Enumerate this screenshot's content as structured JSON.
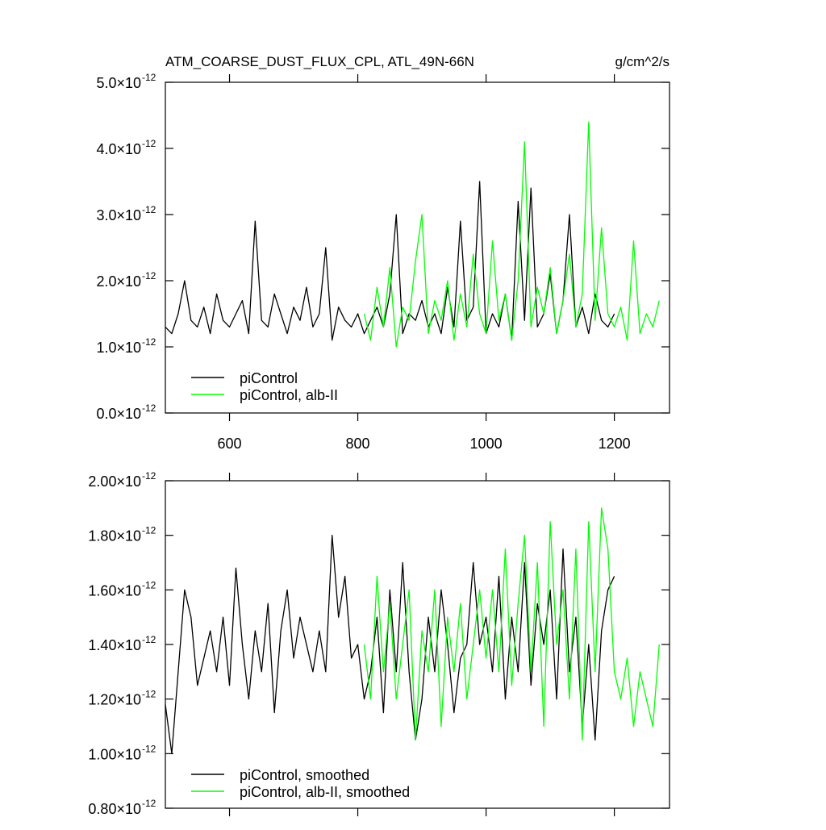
{
  "chart_data": [
    {
      "type": "line",
      "title": "ATM_COARSE_DUST_FLUX_CPL, ATL_49N-66N",
      "units": "g/cm^2/s",
      "xlim": [
        500,
        1286
      ],
      "xticks": [
        600,
        800,
        1000,
        1200
      ],
      "ylim": [
        0,
        5e-12
      ],
      "yticks": [
        {
          "value": 0,
          "label": "0.0×10",
          "exponent": "-12"
        },
        {
          "value": 1e-12,
          "label": "1.0×10",
          "exponent": "-12"
        },
        {
          "value": 2e-12,
          "label": "2.0×10",
          "exponent": "-12"
        },
        {
          "value": 3e-12,
          "label": "3.0×10",
          "exponent": "-12"
        },
        {
          "value": 4e-12,
          "label": "4.0×10",
          "exponent": "-12"
        },
        {
          "value": 5e-12,
          "label": "5.0×10",
          "exponent": "-12"
        }
      ],
      "series": [
        {
          "name": "piControl",
          "color": "#000000",
          "x": [
            500,
            510,
            520,
            530,
            540,
            550,
            560,
            570,
            580,
            590,
            600,
            610,
            620,
            630,
            640,
            650,
            660,
            670,
            680,
            690,
            700,
            710,
            720,
            730,
            740,
            750,
            760,
            770,
            780,
            790,
            800,
            810,
            820,
            830,
            840,
            850,
            860,
            870,
            880,
            890,
            900,
            910,
            920,
            930,
            940,
            950,
            960,
            970,
            980,
            990,
            1000,
            1010,
            1020,
            1030,
            1040,
            1050,
            1060,
            1070,
            1080,
            1090,
            1100,
            1110,
            1120,
            1130,
            1140,
            1150,
            1160,
            1170,
            1180,
            1190,
            1200
          ],
          "values": [
            1.3e-12,
            1.2e-12,
            1.5e-12,
            2e-12,
            1.4e-12,
            1.3e-12,
            1.6e-12,
            1.2e-12,
            1.8e-12,
            1.4e-12,
            1.3e-12,
            1.5e-12,
            1.7e-12,
            1.2e-12,
            2.9e-12,
            1.4e-12,
            1.3e-12,
            1.8e-12,
            1.5e-12,
            1.2e-12,
            1.6e-12,
            1.4e-12,
            1.9e-12,
            1.3e-12,
            1.5e-12,
            2.5e-12,
            1.1e-12,
            1.6e-12,
            1.4e-12,
            1.3e-12,
            1.5e-12,
            1.2e-12,
            1.4e-12,
            1.6e-12,
            1.3e-12,
            1.8e-12,
            3e-12,
            1.2e-12,
            1.5e-12,
            1.4e-12,
            1.7e-12,
            1.3e-12,
            1.5e-12,
            1.2e-12,
            1.9e-12,
            1.3e-12,
            2.9e-12,
            1.4e-12,
            1.6e-12,
            3.5e-12,
            1.2e-12,
            1.5e-12,
            1.3e-12,
            1.8e-12,
            1.1e-12,
            3.2e-12,
            1.4e-12,
            3.4e-12,
            1.3e-12,
            1.5e-12,
            2.1e-12,
            1.2e-12,
            1.7e-12,
            3e-12,
            1.3e-12,
            1.6e-12,
            1.2e-12,
            1.8e-12,
            1.4e-12,
            1.3e-12,
            1.5e-12
          ]
        },
        {
          "name": "piControl, alb-II",
          "color": "#00ff00",
          "x": [
            810,
            820,
            830,
            840,
            850,
            860,
            870,
            880,
            890,
            900,
            910,
            920,
            930,
            940,
            950,
            960,
            970,
            980,
            990,
            1000,
            1010,
            1020,
            1030,
            1040,
            1050,
            1060,
            1070,
            1080,
            1090,
            1100,
            1110,
            1120,
            1130,
            1140,
            1150,
            1160,
            1170,
            1180,
            1190,
            1200,
            1210,
            1220,
            1230,
            1240,
            1250,
            1260,
            1270
          ],
          "values": [
            1.5e-12,
            1.1e-12,
            1.9e-12,
            1.3e-12,
            2.2e-12,
            1e-12,
            1.6e-12,
            1.4e-12,
            2.3e-12,
            3e-12,
            1.2e-12,
            1.7e-12,
            1.4e-12,
            2e-12,
            1.1e-12,
            1.8e-12,
            1.3e-12,
            2.4e-12,
            1.5e-12,
            1.2e-12,
            2.6e-12,
            1.4e-12,
            1.8e-12,
            1.1e-12,
            2e-12,
            4.1e-12,
            1.3e-12,
            1.9e-12,
            1.5e-12,
            2.2e-12,
            1.2e-12,
            1.7e-12,
            2.4e-12,
            1.3e-12,
            1.8e-12,
            4.4e-12,
            1.4e-12,
            2.8e-12,
            1.5e-12,
            1.3e-12,
            1.6e-12,
            1.1e-12,
            2.6e-12,
            1.2e-12,
            1.5e-12,
            1.3e-12,
            1.7e-12
          ]
        }
      ]
    },
    {
      "type": "line",
      "xlim": [
        500,
        1286
      ],
      "xticks": [
        600,
        800,
        1000,
        1200
      ],
      "ylim": [
        8e-13,
        2e-12
      ],
      "yticks": [
        {
          "value": 8e-13,
          "label": "0.80×10",
          "exponent": "-12"
        },
        {
          "value": 1e-12,
          "label": "1.00×10",
          "exponent": "-12"
        },
        {
          "value": 1.2e-12,
          "label": "1.20×10",
          "exponent": "-12"
        },
        {
          "value": 1.4e-12,
          "label": "1.40×10",
          "exponent": "-12"
        },
        {
          "value": 1.6e-12,
          "label": "1.60×10",
          "exponent": "-12"
        },
        {
          "value": 1.8e-12,
          "label": "1.80×10",
          "exponent": "-12"
        },
        {
          "value": 2e-12,
          "label": "2.00×10",
          "exponent": "-12"
        }
      ],
      "series": [
        {
          "name": "piControl, smoothed",
          "color": "#000000",
          "x": [
            500,
            510,
            520,
            530,
            540,
            550,
            560,
            570,
            580,
            590,
            600,
            610,
            620,
            630,
            640,
            650,
            660,
            670,
            680,
            690,
            700,
            710,
            720,
            730,
            740,
            750,
            760,
            770,
            780,
            790,
            800,
            810,
            820,
            830,
            840,
            850,
            860,
            870,
            880,
            890,
            900,
            910,
            920,
            930,
            940,
            950,
            960,
            970,
            980,
            990,
            1000,
            1010,
            1020,
            1030,
            1040,
            1050,
            1060,
            1070,
            1080,
            1090,
            1100,
            1110,
            1120,
            1130,
            1140,
            1150,
            1160,
            1170,
            1180,
            1190,
            1200
          ],
          "values": [
            1.18e-12,
            1e-12,
            1.3e-12,
            1.6e-12,
            1.5e-12,
            1.25e-12,
            1.35e-12,
            1.45e-12,
            1.3e-12,
            1.5e-12,
            1.25e-12,
            1.68e-12,
            1.4e-12,
            1.2e-12,
            1.45e-12,
            1.3e-12,
            1.55e-12,
            1.15e-12,
            1.45e-12,
            1.6e-12,
            1.35e-12,
            1.5e-12,
            1.4e-12,
            1.3e-12,
            1.45e-12,
            1.3e-12,
            1.8e-12,
            1.5e-12,
            1.65e-12,
            1.35e-12,
            1.4e-12,
            1.2e-12,
            1.3e-12,
            1.5e-12,
            1.15e-12,
            1.6e-12,
            1.3e-12,
            1.7e-12,
            1.3e-12,
            1.05e-12,
            1.2e-12,
            1.5e-12,
            1.3e-12,
            1.6e-12,
            1.4e-12,
            1.15e-12,
            1.35e-12,
            1.4e-12,
            1.7e-12,
            1.4e-12,
            1.5e-12,
            1.3e-12,
            1.65e-12,
            1.2e-12,
            1.5e-12,
            1.3e-12,
            1.7e-12,
            1.25e-12,
            1.55e-12,
            1.4e-12,
            1.6e-12,
            1.2e-12,
            1.75e-12,
            1.3e-12,
            1.5e-12,
            1.1e-12,
            1.4e-12,
            1.05e-12,
            1.45e-12,
            1.6e-12,
            1.65e-12
          ]
        },
        {
          "name": "piControl, alb-II, smoothed",
          "color": "#00ff00",
          "x": [
            810,
            820,
            830,
            840,
            850,
            860,
            870,
            880,
            890,
            900,
            910,
            920,
            930,
            940,
            950,
            960,
            970,
            980,
            990,
            1000,
            1010,
            1020,
            1030,
            1040,
            1050,
            1060,
            1070,
            1080,
            1090,
            1100,
            1110,
            1120,
            1130,
            1140,
            1150,
            1160,
            1170,
            1180,
            1190,
            1200,
            1210,
            1220,
            1230,
            1240,
            1250,
            1260,
            1270
          ],
          "values": [
            1.4e-12,
            1.2e-12,
            1.65e-12,
            1.3e-12,
            1.55e-12,
            1.2e-12,
            1.4e-12,
            1.6e-12,
            1.05e-12,
            1.45e-12,
            1.3e-12,
            1.6e-12,
            1.1e-12,
            1.5e-12,
            1.3e-12,
            1.55e-12,
            1.2e-12,
            1.4e-12,
            1.6e-12,
            1.35e-12,
            1.6e-12,
            1.3e-12,
            1.75e-12,
            1.25e-12,
            1.55e-12,
            1.8e-12,
            1.3e-12,
            1.7e-12,
            1.1e-12,
            1.85e-12,
            1.4e-12,
            1.6e-12,
            1.2e-12,
            1.75e-12,
            1.05e-12,
            1.85e-12,
            1.3e-12,
            1.9e-12,
            1.75e-12,
            1.3e-12,
            1.2e-12,
            1.35e-12,
            1.1e-12,
            1.3e-12,
            1.2e-12,
            1.1e-12,
            1.4e-12
          ]
        }
      ]
    }
  ]
}
